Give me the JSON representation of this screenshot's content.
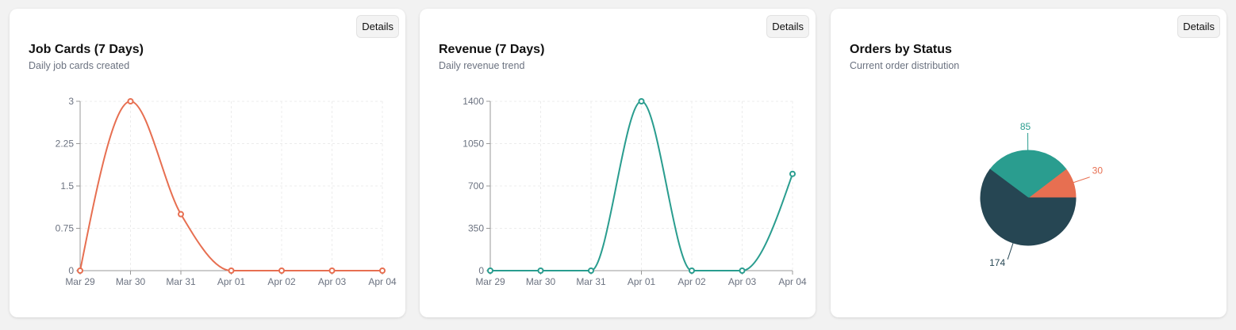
{
  "cards": [
    {
      "title": "Job Cards (7 Days)",
      "subtitle": "Daily job cards created",
      "details_label": "Details"
    },
    {
      "title": "Revenue (7 Days)",
      "subtitle": "Daily revenue trend",
      "details_label": "Details"
    },
    {
      "title": "Orders by Status",
      "subtitle": "Current order distribution",
      "details_label": "Details"
    }
  ],
  "chart_data": [
    {
      "type": "line",
      "categories": [
        "Mar 29",
        "Mar 30",
        "Mar 31",
        "Apr 01",
        "Apr 02",
        "Apr 03",
        "Apr 04"
      ],
      "values": [
        0,
        3,
        1,
        0,
        0,
        0,
        0
      ],
      "ylim": [
        0,
        3
      ],
      "yticks": [
        "0",
        "0.75",
        "1.5",
        "2.25",
        "3"
      ],
      "color": "#e76f51",
      "grid": true
    },
    {
      "type": "line",
      "categories": [
        "Mar 29",
        "Mar 30",
        "Mar 31",
        "Apr 01",
        "Apr 02",
        "Apr 03",
        "Apr 04"
      ],
      "values": [
        0,
        0,
        0,
        1400,
        0,
        0,
        800
      ],
      "ylim": [
        0,
        1400
      ],
      "yticks": [
        "0",
        "350",
        "700",
        "1050",
        "1400"
      ],
      "color": "#2a9d8f",
      "grid": true
    },
    {
      "type": "pie",
      "slices": [
        {
          "value": 30,
          "label": "30",
          "color": "#e76f51"
        },
        {
          "value": 85,
          "label": "85",
          "color": "#2a9d8f"
        },
        {
          "value": 174,
          "label": "174",
          "color": "#264653"
        }
      ]
    }
  ]
}
